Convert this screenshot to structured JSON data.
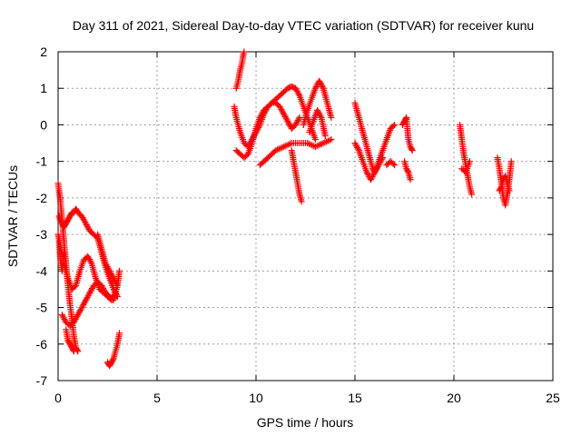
{
  "chart_data": {
    "type": "scatter",
    "title": "Day 311 of 2021, Sidereal Day-to-day VTEC variation (SDTVAR) for receiver kunu",
    "xlabel": "GPS time / hours",
    "ylabel": "SDTVAR / TECUs",
    "xlim": [
      0,
      25
    ],
    "ylim": [
      -7,
      2
    ],
    "x_ticks": [
      "0",
      "5",
      "10",
      "15",
      "20",
      "25"
    ],
    "y_ticks": [
      "2",
      "1",
      "0",
      "-1",
      "-2",
      "-3",
      "-4",
      "-5",
      "-6",
      "-7"
    ],
    "grid": true,
    "marker": "plus",
    "color": "#ff0000",
    "series": [
      {
        "values": [
          {
            "x": [
              0.0,
              0.1,
              0.2,
              0.3,
              0.4,
              0.5,
              0.6,
              0.7,
              0.8,
              0.9,
              1.0
            ],
            "y": [
              -1.6,
              -2.0,
              -2.6,
              -3.2,
              -3.8,
              -4.4,
              -4.9,
              -5.3,
              -5.8,
              -6.1,
              -6.2
            ]
          },
          {
            "x": [
              0.05,
              0.1,
              0.2,
              0.3,
              0.4,
              0.5,
              0.6,
              0.7,
              0.8,
              0.9,
              1.0,
              1.2,
              1.4,
              1.6,
              1.8,
              2.0,
              2.2,
              2.4,
              2.6,
              2.8,
              3.0
            ],
            "y": [
              -2.5,
              -2.6,
              -2.7,
              -2.8,
              -2.7,
              -2.6,
              -2.5,
              -2.4,
              -2.4,
              -2.3,
              -2.4,
              -2.5,
              -2.7,
              -2.9,
              -3.0,
              -3.1,
              -3.5,
              -3.9,
              -4.2,
              -4.5,
              -4.7
            ]
          },
          {
            "x": [
              0.0,
              0.15,
              0.3,
              0.5,
              0.7,
              0.9,
              1.1,
              1.3,
              1.5,
              1.7,
              1.9,
              2.1,
              2.3,
              2.5,
              2.7,
              2.9
            ],
            "y": [
              -3.0,
              -3.4,
              -3.8,
              -4.2,
              -4.5,
              -4.4,
              -4.0,
              -3.7,
              -3.6,
              -3.8,
              -4.2,
              -4.5,
              -4.6,
              -4.7,
              -4.8,
              -4.6
            ]
          },
          {
            "x": [
              0.2,
              0.4,
              0.6,
              0.8,
              1.0,
              1.2,
              1.4,
              1.6,
              1.8,
              2.0,
              2.2,
              2.4,
              2.6,
              2.8,
              3.0
            ],
            "y": [
              -5.2,
              -5.4,
              -5.5,
              -5.4,
              -5.2,
              -5.0,
              -4.8,
              -4.6,
              -4.4,
              -4.3,
              -4.4,
              -4.6,
              -4.7,
              -4.8,
              -4.4
            ]
          },
          {
            "x": [
              0.05,
              0.1,
              0.2,
              0.3
            ],
            "y": [
              -3.2,
              -3.6,
              -4.0,
              -3.5
            ]
          },
          {
            "x": [
              0.4,
              0.5,
              0.6,
              0.7,
              0.8
            ],
            "y": [
              -5.6,
              -5.9,
              -6.0,
              -6.1,
              -6.2
            ]
          },
          {
            "x": [
              2.5,
              2.6,
              2.7,
              2.8,
              2.9,
              3.0,
              3.1
            ],
            "y": [
              -6.5,
              -6.6,
              -6.5,
              -6.4,
              -6.2,
              -6.0,
              -5.7
            ]
          },
          {
            "x": [
              2.0,
              2.2,
              2.4,
              2.6,
              2.8,
              3.0,
              3.1
            ],
            "y": [
              -3.0,
              -3.4,
              -3.8,
              -4.0,
              -4.2,
              -4.4,
              -4.0
            ]
          },
          {
            "x": [
              9.0,
              9.1,
              9.2,
              9.3,
              9.35,
              9.4
            ],
            "y": [
              1.0,
              1.2,
              1.5,
              1.7,
              1.9,
              2.0
            ]
          },
          {
            "x": [
              8.9,
              9.0,
              9.2,
              9.4,
              9.6,
              9.8,
              10.0,
              10.2,
              10.4,
              10.6,
              10.8,
              11.0,
              11.2,
              11.4,
              11.6,
              11.8,
              12.0,
              12.2,
              12.4,
              12.6,
              12.8,
              13.0
            ],
            "y": [
              0.5,
              0.2,
              -0.2,
              -0.5,
              -0.6,
              -0.4,
              -0.2,
              0.0,
              0.3,
              0.5,
              0.6,
              0.7,
              0.8,
              0.9,
              1.0,
              1.05,
              1.0,
              0.8,
              0.5,
              0.2,
              -0.1,
              -0.4
            ]
          },
          {
            "x": [
              9.0,
              9.2,
              9.4,
              9.6,
              9.8,
              10.0,
              10.2,
              10.4,
              10.6,
              10.8,
              11.0,
              11.2,
              11.4,
              11.6,
              11.8,
              12.0,
              12.2
            ],
            "y": [
              -0.7,
              -0.8,
              -0.9,
              -0.8,
              -0.5,
              -0.1,
              0.2,
              0.4,
              0.5,
              0.6,
              0.6,
              0.5,
              0.3,
              0.1,
              -0.1,
              0.0,
              0.2
            ]
          },
          {
            "x": [
              10.2,
              10.6,
              11.0,
              11.4,
              11.8,
              12.2,
              12.6,
              13.0,
              13.4,
              13.8
            ],
            "y": [
              -1.1,
              -0.9,
              -0.7,
              -0.6,
              -0.5,
              -0.5,
              -0.5,
              -0.6,
              -0.5,
              -0.4
            ]
          },
          {
            "x": [
              11.8,
              11.9,
              12.0,
              12.1,
              12.2,
              12.3
            ],
            "y": [
              -0.7,
              -1.0,
              -1.3,
              -1.6,
              -1.9,
              -2.1
            ]
          },
          {
            "x": [
              12.4,
              12.6,
              12.8,
              13.0,
              13.2,
              13.4,
              13.6,
              13.8
            ],
            "y": [
              0.0,
              0.4,
              0.7,
              1.0,
              1.2,
              1.0,
              0.6,
              0.2
            ]
          },
          {
            "x": [
              12.7,
              12.9,
              13.1,
              13.3,
              13.5
            ],
            "y": [
              -0.2,
              0.1,
              0.4,
              0.2,
              -0.3
            ]
          },
          {
            "x": [
              15.0,
              15.1,
              15.2,
              15.3,
              15.4,
              15.5,
              15.6,
              15.7,
              15.8,
              15.9,
              16.0,
              16.2,
              16.4
            ],
            "y": [
              0.6,
              0.4,
              0.2,
              0.0,
              -0.2,
              -0.4,
              -0.6,
              -0.8,
              -1.0,
              -1.2,
              -1.3,
              -1.1,
              -0.9
            ]
          },
          {
            "x": [
              15.0,
              15.2,
              15.4,
              15.6,
              15.8,
              16.0,
              16.2,
              16.4,
              16.6,
              16.8,
              17.0
            ],
            "y": [
              -0.5,
              -0.7,
              -1.0,
              -1.3,
              -1.5,
              -1.3,
              -1.0,
              -0.7,
              -0.4,
              -0.1,
              0.0
            ]
          },
          {
            "x": [
              16.6,
              16.8,
              17.0
            ],
            "y": [
              -1.1,
              -1.0,
              -1.1
            ]
          },
          {
            "x": [
              17.4,
              17.5,
              17.6,
              17.7,
              17.8,
              17.9
            ],
            "y": [
              0.0,
              0.1,
              0.2,
              -0.4,
              -0.6,
              -0.7
            ]
          },
          {
            "x": [
              17.5,
              17.6,
              17.7,
              17.8
            ],
            "y": [
              -1.0,
              -1.2,
              -1.3,
              -1.5
            ]
          },
          {
            "x": [
              20.3,
              20.4,
              20.5,
              20.6,
              20.7,
              20.8,
              20.9
            ],
            "y": [
              0.0,
              -0.4,
              -0.8,
              -1.1,
              -1.4,
              -1.7,
              -1.9
            ]
          },
          {
            "x": [
              20.4,
              20.6,
              20.8
            ],
            "y": [
              -1.2,
              -1.3,
              -1.0
            ]
          },
          {
            "x": [
              22.2,
              22.3,
              22.4,
              22.5,
              22.6,
              22.7,
              22.8,
              22.9
            ],
            "y": [
              -0.9,
              -1.2,
              -1.6,
              -2.0,
              -2.2,
              -1.9,
              -1.5,
              -1.0
            ]
          },
          {
            "x": [
              22.3,
              22.4,
              22.5,
              22.6,
              22.7,
              22.8
            ],
            "y": [
              -1.8,
              -1.7,
              -1.5,
              -1.4,
              -1.6,
              -1.8
            ]
          }
        ]
      }
    ]
  }
}
